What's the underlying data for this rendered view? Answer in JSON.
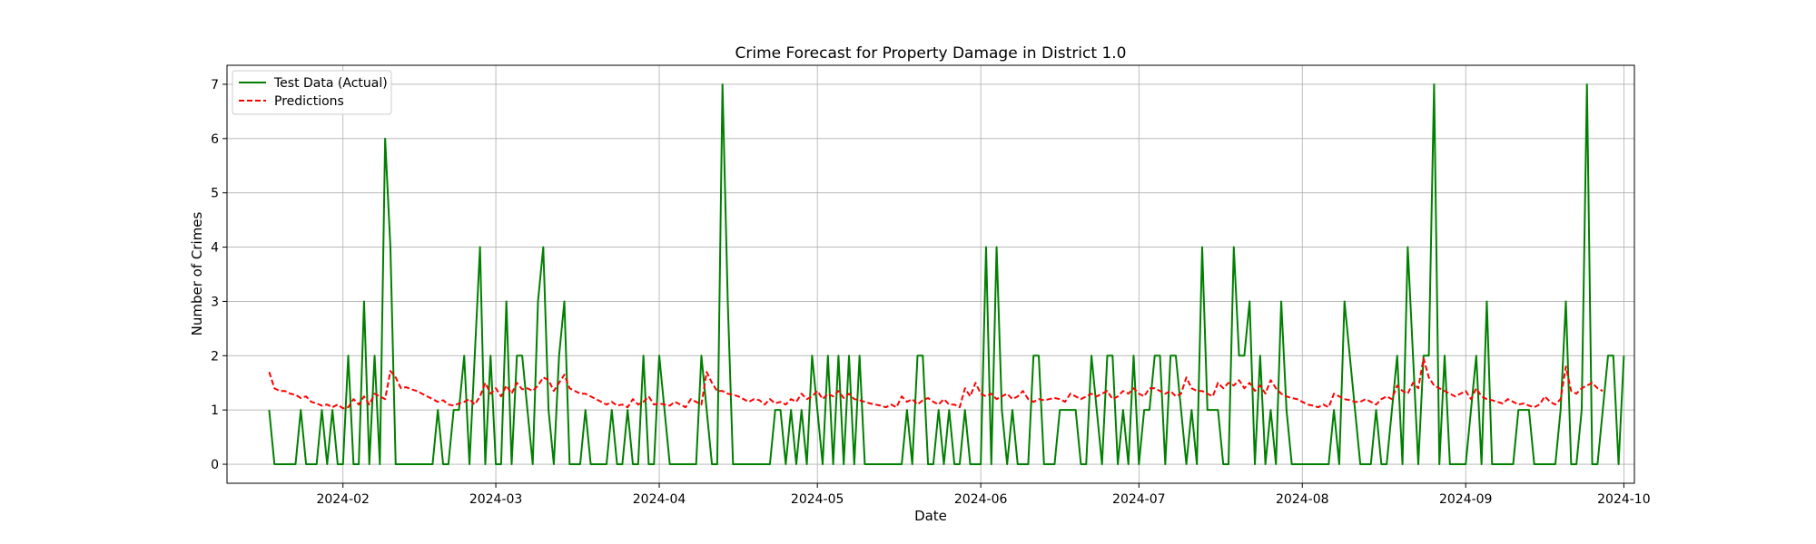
{
  "chart_data": {
    "type": "line",
    "title": "Crime Forecast for Property Damage in District 1.0",
    "xlabel": "Date",
    "ylabel": "Number of Crimes",
    "x_start": "2024-01-18",
    "x_end": "2024-09-20",
    "xlim": [
      "2024-01-10",
      "2024-10-03"
    ],
    "ylim": [
      -0.35,
      7.35
    ],
    "x_ticks": [
      "2024-02",
      "2024-03",
      "2024-04",
      "2024-05",
      "2024-06",
      "2024-07",
      "2024-08",
      "2024-09",
      "2024-10"
    ],
    "y_ticks": [
      "0",
      "1",
      "2",
      "3",
      "4",
      "5",
      "6",
      "7"
    ],
    "grid": true,
    "legend_position": "top-left",
    "series": [
      {
        "name": "Test Data (Actual)",
        "color": "#008000",
        "style": "solid",
        "values": [
          1,
          0,
          0,
          0,
          0,
          0,
          1,
          0,
          0,
          0,
          1,
          0,
          1,
          0,
          0,
          2,
          0,
          0,
          3,
          0,
          2,
          0,
          6,
          4,
          0,
          0,
          0,
          0,
          0,
          0,
          0,
          0,
          1,
          0,
          0,
          1,
          1,
          2,
          0,
          2,
          4,
          0,
          2,
          0,
          0,
          3,
          0,
          2,
          2,
          1,
          0,
          3,
          4,
          1,
          0,
          2,
          3,
          0,
          0,
          0,
          1,
          0,
          0,
          0,
          0,
          1,
          0,
          0,
          1,
          0,
          0,
          2,
          0,
          0,
          2,
          1,
          0,
          0,
          0,
          0,
          0,
          0,
          2,
          1,
          0,
          0,
          7,
          3,
          0,
          0,
          0,
          0,
          0,
          0,
          0,
          0,
          1,
          1,
          0,
          1,
          0,
          1,
          0,
          2,
          1,
          0,
          2,
          0,
          2,
          0,
          2,
          0,
          2,
          0,
          0,
          0,
          0,
          0,
          0,
          0,
          0,
          1,
          0,
          2,
          2,
          0,
          0,
          1,
          0,
          1,
          0,
          0,
          1,
          0,
          0,
          0,
          4,
          0,
          4,
          1,
          0,
          1,
          0,
          0,
          0,
          2,
          2,
          0,
          0,
          0,
          1,
          1,
          1,
          1,
          0,
          0,
          2,
          1,
          0,
          2,
          2,
          0,
          1,
          0,
          2,
          0,
          1,
          1,
          2,
          2,
          0,
          2,
          2,
          1,
          0,
          1,
          0,
          4,
          1,
          1,
          1,
          0,
          0,
          4,
          2,
          2,
          3,
          0,
          2,
          0,
          1,
          0,
          3,
          1,
          0,
          0,
          0,
          0,
          0,
          0,
          0,
          0,
          1,
          0,
          3,
          2,
          1,
          0,
          0,
          0,
          1,
          0,
          0,
          1,
          2,
          0,
          4,
          2,
          0,
          2,
          2,
          7,
          0,
          2,
          0,
          0,
          0,
          0,
          1,
          2,
          0,
          3,
          0,
          0,
          0,
          0,
          0,
          1,
          1,
          1,
          0,
          0,
          0,
          0,
          0,
          1,
          3,
          0,
          0,
          1,
          7,
          0,
          0,
          1,
          2,
          2,
          0,
          2
        ]
      },
      {
        "name": "Predictions",
        "color": "#ff0000",
        "style": "dashed",
        "values": [
          1.7,
          1.4,
          1.35,
          1.35,
          1.3,
          1.28,
          1.22,
          1.25,
          1.15,
          1.12,
          1.08,
          1.1,
          1.05,
          1.1,
          1.03,
          1.05,
          1.2,
          1.1,
          1.25,
          1.1,
          1.3,
          1.25,
          1.2,
          1.72,
          1.6,
          1.4,
          1.42,
          1.38,
          1.35,
          1.3,
          1.25,
          1.2,
          1.15,
          1.18,
          1.1,
          1.08,
          1.12,
          1.15,
          1.2,
          1.1,
          1.25,
          1.5,
          1.3,
          1.4,
          1.25,
          1.45,
          1.3,
          1.5,
          1.38,
          1.4,
          1.35,
          1.45,
          1.6,
          1.55,
          1.35,
          1.5,
          1.65,
          1.4,
          1.35,
          1.3,
          1.3,
          1.25,
          1.2,
          1.15,
          1.1,
          1.15,
          1.08,
          1.1,
          1.05,
          1.2,
          1.1,
          1.15,
          1.25,
          1.1,
          1.12,
          1.1,
          1.08,
          1.15,
          1.1,
          1.05,
          1.2,
          1.15,
          1.1,
          1.7,
          1.5,
          1.35,
          1.35,
          1.3,
          1.28,
          1.25,
          1.2,
          1.15,
          1.2,
          1.18,
          1.1,
          1.2,
          1.12,
          1.15,
          1.1,
          1.2,
          1.15,
          1.3,
          1.2,
          1.25,
          1.35,
          1.2,
          1.3,
          1.25,
          1.35,
          1.22,
          1.3,
          1.2,
          1.18,
          1.15,
          1.12,
          1.1,
          1.08,
          1.05,
          1.1,
          1.05,
          1.25,
          1.15,
          1.2,
          1.1,
          1.18,
          1.22,
          1.15,
          1.1,
          1.2,
          1.1,
          1.1,
          1.05,
          1.4,
          1.25,
          1.5,
          1.3,
          1.25,
          1.3,
          1.2,
          1.25,
          1.3,
          1.2,
          1.25,
          1.35,
          1.2,
          1.15,
          1.2,
          1.18,
          1.2,
          1.22,
          1.2,
          1.15,
          1.3,
          1.25,
          1.2,
          1.25,
          1.3,
          1.25,
          1.3,
          1.35,
          1.2,
          1.25,
          1.35,
          1.3,
          1.4,
          1.3,
          1.25,
          1.4,
          1.4,
          1.35,
          1.3,
          1.35,
          1.25,
          1.3,
          1.6,
          1.4,
          1.35,
          1.35,
          1.3,
          1.25,
          1.5,
          1.4,
          1.5,
          1.45,
          1.55,
          1.4,
          1.5,
          1.35,
          1.45,
          1.3,
          1.55,
          1.4,
          1.3,
          1.25,
          1.22,
          1.2,
          1.15,
          1.1,
          1.08,
          1.05,
          1.1,
          1.05,
          1.3,
          1.25,
          1.2,
          1.18,
          1.15,
          1.15,
          1.2,
          1.15,
          1.1,
          1.2,
          1.25,
          1.2,
          1.45,
          1.35,
          1.3,
          1.5,
          1.4,
          1.95,
          1.6,
          1.45,
          1.4,
          1.35,
          1.3,
          1.25,
          1.3,
          1.35,
          1.2,
          1.4,
          1.25,
          1.2,
          1.18,
          1.15,
          1.12,
          1.2,
          1.15,
          1.1,
          1.12,
          1.08,
          1.05,
          1.1,
          1.25,
          1.15,
          1.1,
          1.2,
          1.8,
          1.35,
          1.3,
          1.4,
          1.45,
          1.5,
          1.4,
          1.35
        ]
      }
    ]
  }
}
